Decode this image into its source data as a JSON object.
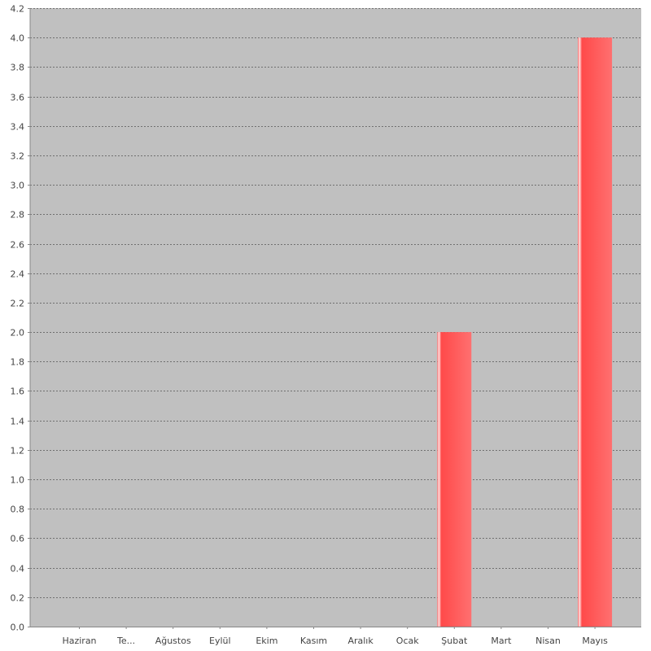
{
  "chart_data": {
    "type": "bar",
    "categories": [
      "Haziran",
      "Te...",
      "Ağustos",
      "Eylül",
      "Ekim",
      "Kasım",
      "Aralık",
      "Ocak",
      "Şubat",
      "Mart",
      "Nisan",
      "Mayıs"
    ],
    "values": [
      0,
      0,
      0,
      0,
      0,
      0,
      0,
      0,
      2.0,
      0,
      0,
      4.0
    ],
    "ylim": [
      0,
      4.2
    ],
    "yticks": [
      "0.0",
      "0.2",
      "0.4",
      "0.6",
      "0.8",
      "1.0",
      "1.2",
      "1.4",
      "1.6",
      "1.8",
      "2.0",
      "2.2",
      "2.4",
      "2.6",
      "2.8",
      "3.0",
      "3.2",
      "3.4",
      "3.6",
      "3.8",
      "4.0",
      "4.2"
    ],
    "grid": true,
    "colors": {
      "plot_background": "#c0c0c0",
      "bar": "#ff5555",
      "bar_highlight": "#ffd0d0",
      "gridline": "#555555",
      "axis": "#888888"
    }
  }
}
